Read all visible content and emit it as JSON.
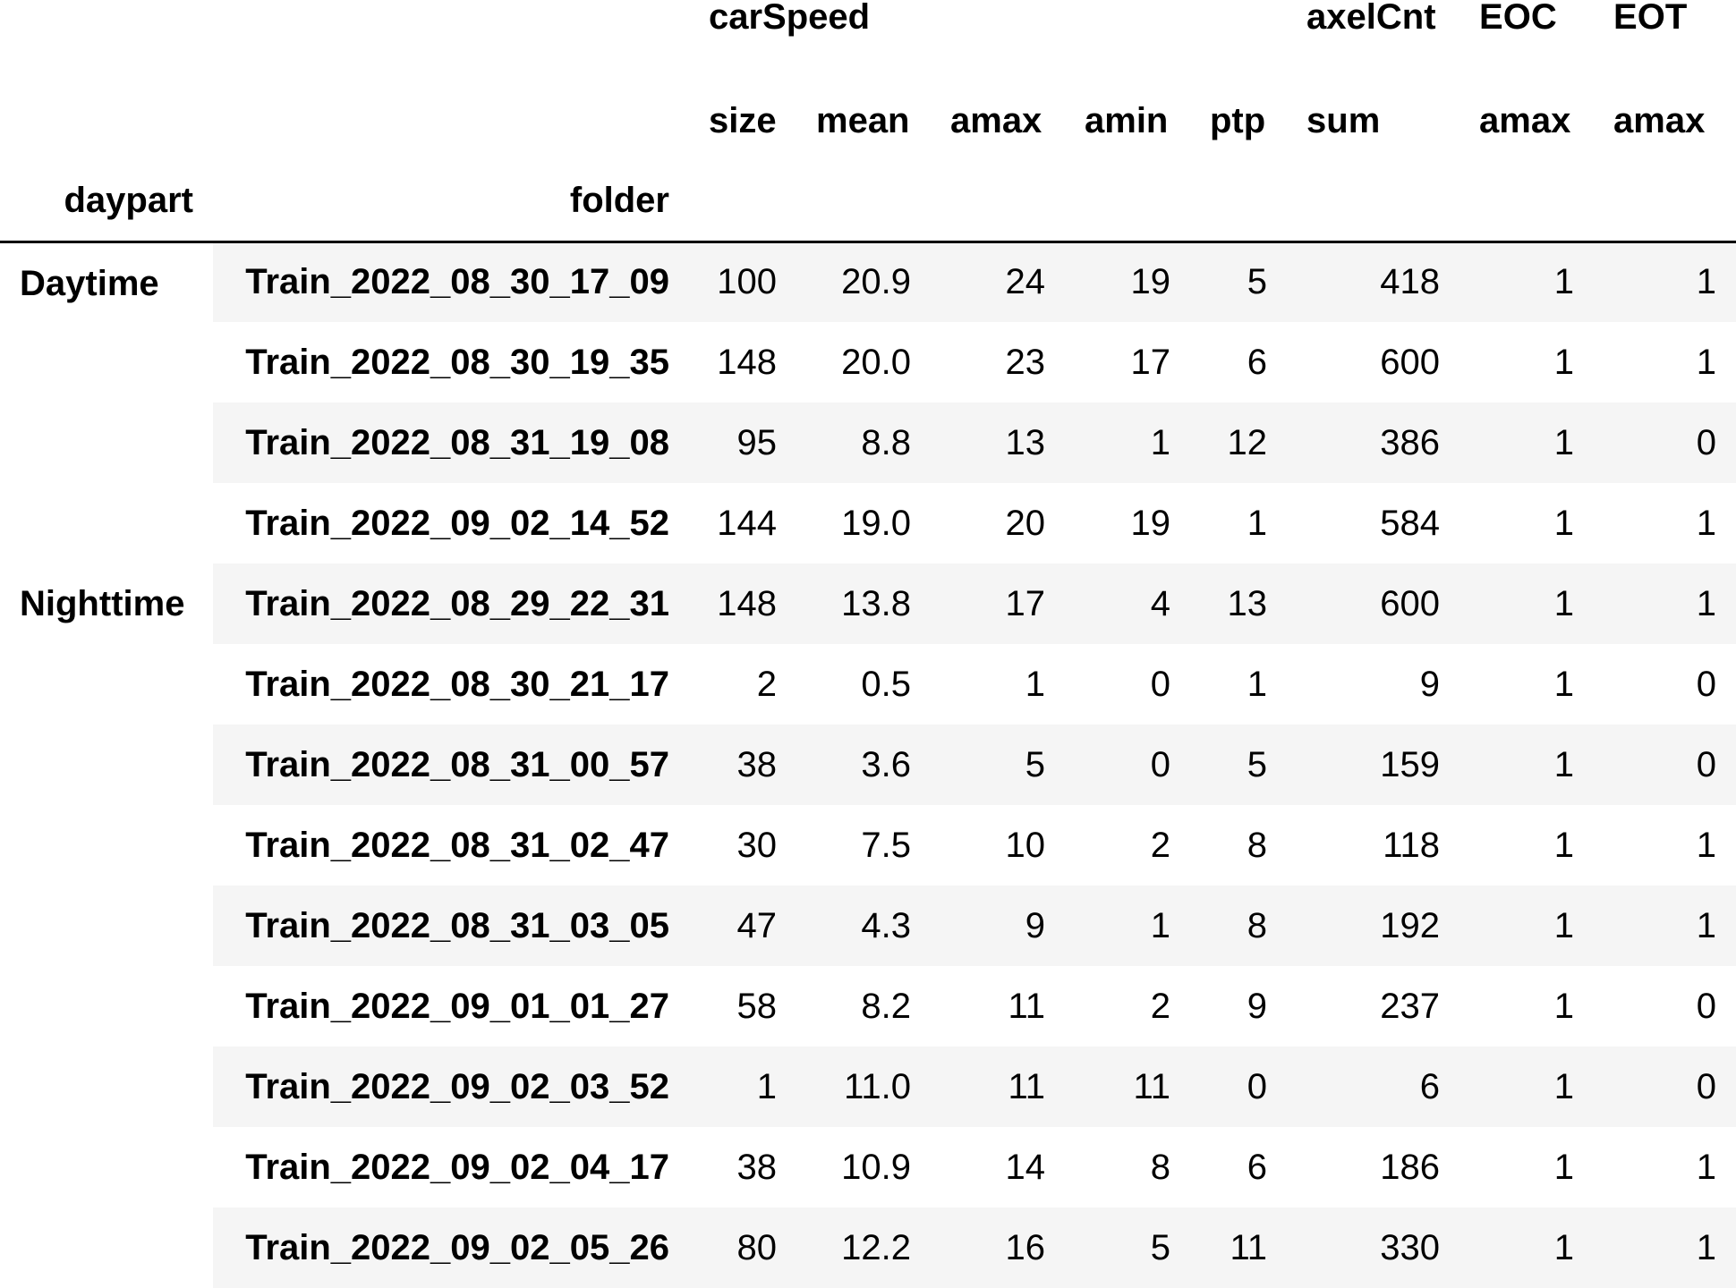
{
  "header": {
    "level0": {
      "carSpeed": "carSpeed",
      "axelCnt": "axelCnt",
      "EOC": "EOC",
      "EOT": "EOT"
    },
    "level1": [
      "size",
      "mean",
      "amax",
      "amin",
      "ptp",
      "sum",
      "amax",
      "amax"
    ],
    "index_names": {
      "daypart": "daypart",
      "folder": "folder"
    }
  },
  "groups": [
    {
      "daypart": "Daytime",
      "rows": [
        {
          "folder": "Train_2022_08_30_17_09",
          "values": [
            "100",
            "20.9",
            "24",
            "19",
            "5",
            "418",
            "1",
            "1"
          ]
        },
        {
          "folder": "Train_2022_08_30_19_35",
          "values": [
            "148",
            "20.0",
            "23",
            "17",
            "6",
            "600",
            "1",
            "1"
          ]
        },
        {
          "folder": "Train_2022_08_31_19_08",
          "values": [
            "95",
            "8.8",
            "13",
            "1",
            "12",
            "386",
            "1",
            "0"
          ]
        },
        {
          "folder": "Train_2022_09_02_14_52",
          "values": [
            "144",
            "19.0",
            "20",
            "19",
            "1",
            "584",
            "1",
            "1"
          ]
        }
      ]
    },
    {
      "daypart": "Nighttime",
      "rows": [
        {
          "folder": "Train_2022_08_29_22_31",
          "values": [
            "148",
            "13.8",
            "17",
            "4",
            "13",
            "600",
            "1",
            "1"
          ]
        },
        {
          "folder": "Train_2022_08_30_21_17",
          "values": [
            "2",
            "0.5",
            "1",
            "0",
            "1",
            "9",
            "1",
            "0"
          ]
        },
        {
          "folder": "Train_2022_08_31_00_57",
          "values": [
            "38",
            "3.6",
            "5",
            "0",
            "5",
            "159",
            "1",
            "0"
          ]
        },
        {
          "folder": "Train_2022_08_31_02_47",
          "values": [
            "30",
            "7.5",
            "10",
            "2",
            "8",
            "118",
            "1",
            "1"
          ]
        },
        {
          "folder": "Train_2022_08_31_03_05",
          "values": [
            "47",
            "4.3",
            "9",
            "1",
            "8",
            "192",
            "1",
            "1"
          ]
        },
        {
          "folder": "Train_2022_09_01_01_27",
          "values": [
            "58",
            "8.2",
            "11",
            "2",
            "9",
            "237",
            "1",
            "0"
          ]
        },
        {
          "folder": "Train_2022_09_02_03_52",
          "values": [
            "1",
            "11.0",
            "11",
            "11",
            "0",
            "6",
            "1",
            "0"
          ]
        },
        {
          "folder": "Train_2022_09_02_04_17",
          "values": [
            "38",
            "10.9",
            "14",
            "8",
            "6",
            "186",
            "1",
            "1"
          ]
        },
        {
          "folder": "Train_2022_09_02_05_26",
          "values": [
            "80",
            "12.2",
            "16",
            "5",
            "11",
            "330",
            "1",
            "1"
          ]
        }
      ]
    }
  ]
}
